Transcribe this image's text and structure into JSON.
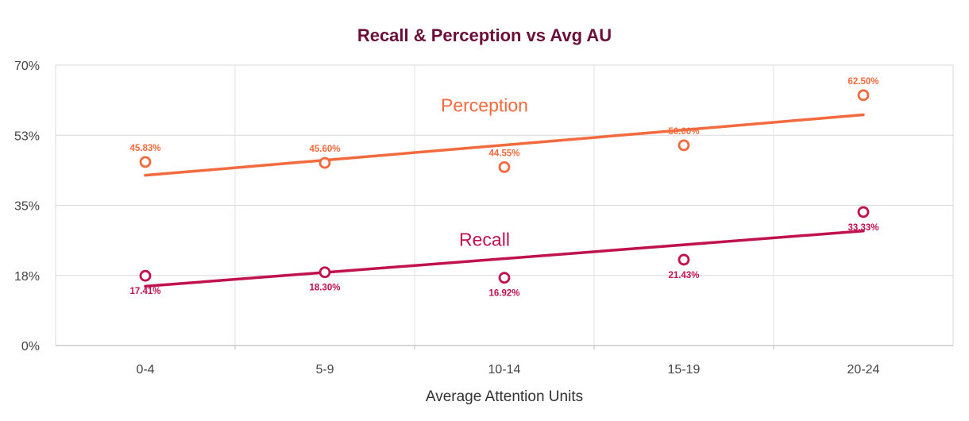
{
  "chart_data": {
    "type": "scatter",
    "title": "Recall & Perception vs Avg AU",
    "xlabel": "Average Attention Units",
    "ylabel": "",
    "categories": [
      "0-4",
      "5-9",
      "10-14",
      "15-19",
      "20-24"
    ],
    "ylim": [
      0,
      70
    ],
    "yticks": [
      0,
      17.5,
      35,
      52.5,
      70
    ],
    "ytick_labels": [
      "0%",
      "18%",
      "35%",
      "53%",
      "70%"
    ],
    "grid": true,
    "series": [
      {
        "name": "Perception",
        "color": "#f26a3d",
        "values": [
          45.83,
          45.6,
          44.55,
          50.0,
          62.5
        ],
        "labels": [
          "45.83%",
          "45.60%",
          "44.55%",
          "50.00%",
          "62.50%"
        ],
        "label_position": "above",
        "trendline": {
          "start": 42.5,
          "end": 57.6
        }
      },
      {
        "name": "Recall",
        "color": "#c0124c",
        "values": [
          17.41,
          18.3,
          16.92,
          21.43,
          33.33
        ],
        "labels": [
          "17.41%",
          "18.30%",
          "16.92%",
          "21.43%",
          "33.33%"
        ],
        "label_position": "below",
        "trendline": {
          "start": 14.8,
          "end": 28.6
        }
      }
    ]
  }
}
